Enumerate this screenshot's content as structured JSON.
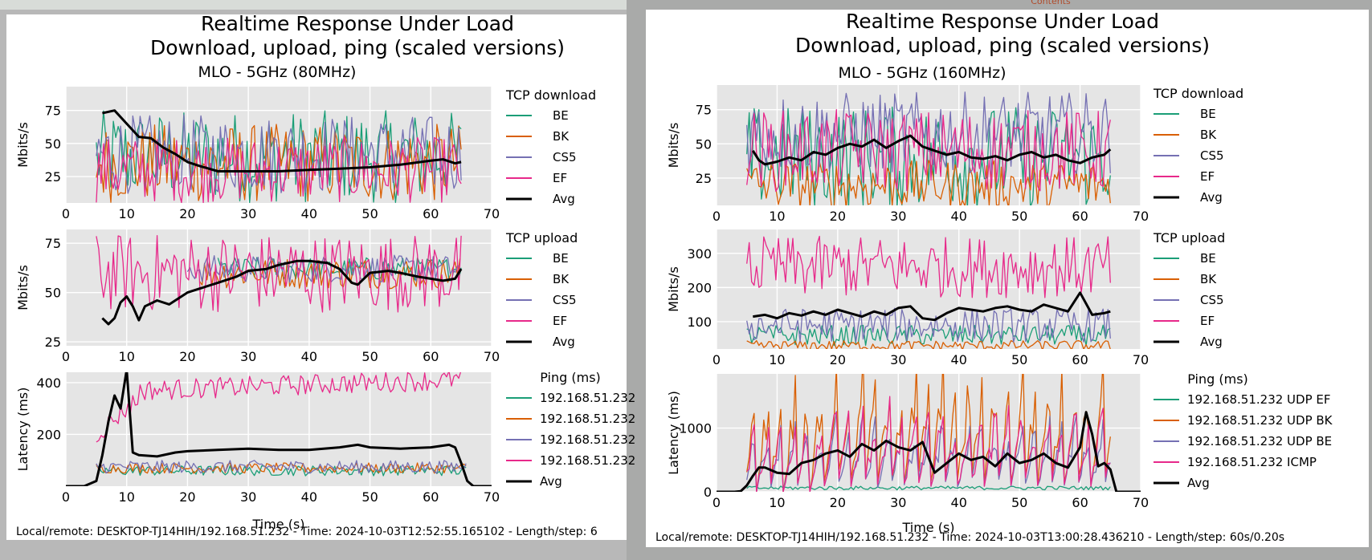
{
  "page": {
    "top_link": "Contents"
  },
  "chart_data": [
    {
      "type": "line",
      "title_line1": "Realtime Response Under Load",
      "title_line2": "Download, upload, ping (scaled versions)",
      "subtitle": "MLO - 5GHz (80MHz)",
      "footer": "Local/remote: DESKTOP-TJ14HIH/192.168.51.232 - Time: 2024-10-03T12:52:55.165102 - Length/step: 6",
      "subplots": [
        {
          "id": "download",
          "ylabel": "Mbits/s",
          "xlim": [
            0,
            70
          ],
          "ylim": [
            5,
            93
          ],
          "xticks": [
            0,
            10,
            20,
            30,
            40,
            50,
            60,
            70
          ],
          "yticks": [
            25,
            50,
            75
          ],
          "legend_title": "TCP download",
          "series": [
            {
              "name": "BE",
              "color": "#1b9e77",
              "style": "noisy",
              "center": 40,
              "amp": 35,
              "start": 5,
              "end": 65
            },
            {
              "name": "BK",
              "color": "#d95f02",
              "style": "noisy",
              "center": 35,
              "amp": 30,
              "start": 5,
              "end": 65
            },
            {
              "name": "CS5",
              "color": "#7570b3",
              "style": "noisy",
              "center": 42,
              "amp": 30,
              "start": 5,
              "end": 65
            },
            {
              "name": "EF",
              "color": "#e7298a",
              "style": "noisy",
              "center": 30,
              "amp": 25,
              "start": 5,
              "end": 65
            },
            {
              "name": "Avg",
              "color": "#000000",
              "style": "avg",
              "x": [
                6,
                8,
                10,
                12,
                14,
                16,
                18,
                20,
                22,
                25,
                30,
                35,
                40,
                45,
                50,
                55,
                60,
                62,
                64,
                65
              ],
              "y": [
                73,
                75,
                65,
                55,
                54,
                47,
                42,
                36,
                33,
                29,
                29,
                29,
                30,
                31,
                32,
                34,
                37,
                38,
                35,
                36
              ]
            }
          ]
        },
        {
          "id": "upload",
          "ylabel": "Mbits/s",
          "xlim": [
            0,
            70
          ],
          "ylim": [
            23,
            82
          ],
          "xticks": [
            0,
            10,
            20,
            30,
            40,
            50,
            60,
            70
          ],
          "yticks": [
            25,
            50,
            75
          ],
          "legend_title": "TCP upload",
          "series": [
            {
              "name": "BE",
              "color": "#1b9e77",
              "style": "noisy",
              "center": 62,
              "amp": 6,
              "start": 25,
              "end": 65
            },
            {
              "name": "BK",
              "color": "#d95f02",
              "style": "noisy",
              "center": 60,
              "amp": 8,
              "start": 22,
              "end": 65
            },
            {
              "name": "CS5",
              "color": "#7570b3",
              "style": "noisy",
              "center": 62,
              "amp": 7,
              "start": 20,
              "end": 65
            },
            {
              "name": "EF",
              "color": "#e7298a",
              "style": "noisy",
              "center": 60,
              "amp": 20,
              "start": 5,
              "end": 65
            },
            {
              "name": "Avg",
              "color": "#000000",
              "style": "avg",
              "x": [
                6,
                7,
                8,
                9,
                10,
                11,
                12,
                13,
                15,
                17,
                20,
                22,
                25,
                28,
                30,
                33,
                35,
                38,
                40,
                43,
                45,
                47,
                48,
                50,
                53,
                55,
                58,
                60,
                62,
                64,
                65
              ],
              "y": [
                37,
                34,
                37,
                45,
                48,
                43,
                36,
                43,
                46,
                44,
                50,
                52,
                55,
                58,
                61,
                62,
                64,
                66,
                66,
                65,
                62,
                55,
                54,
                60,
                61,
                60,
                58,
                57,
                56,
                57,
                62
              ]
            }
          ]
        },
        {
          "id": "ping",
          "ylabel": "Latency (ms)",
          "xlabel": "Time (s)",
          "xlim": [
            0,
            70
          ],
          "ylim": [
            0,
            440
          ],
          "xticks": [
            0,
            10,
            20,
            30,
            40,
            50,
            60,
            70
          ],
          "yticks": [
            200,
            400
          ],
          "legend_title": "Ping (ms)",
          "series": [
            {
              "name": "192.168.51.232",
              "color": "#1b9e77",
              "style": "noisy",
              "center": 60,
              "amp": 20,
              "start": 5,
              "end": 66
            },
            {
              "name": "192.168.51.232",
              "color": "#d95f02",
              "style": "noisy",
              "center": 70,
              "amp": 20,
              "start": 5,
              "end": 66
            },
            {
              "name": "192.168.51.232",
              "color": "#7570b3",
              "style": "noisy",
              "center": 75,
              "amp": 25,
              "start": 5,
              "end": 66
            },
            {
              "name": "192.168.51.232",
              "color": "#e7298a",
              "style": "rise",
              "center": 370,
              "amp": 40,
              "start": 5,
              "end": 65
            },
            {
              "name": "Avg",
              "color": "#000000",
              "style": "avg",
              "x": [
                0,
                3,
                5,
                6,
                7,
                8,
                9,
                10,
                11,
                12,
                15,
                18,
                20,
                25,
                30,
                35,
                40,
                45,
                48,
                50,
                55,
                60,
                63,
                64,
                65,
                66,
                67,
                70
              ],
              "y": [
                0,
                0,
                20,
                120,
                250,
                350,
                300,
                450,
                130,
                120,
                115,
                130,
                135,
                140,
                145,
                140,
                140,
                150,
                160,
                150,
                145,
                150,
                160,
                150,
                90,
                20,
                0,
                0
              ]
            }
          ]
        }
      ]
    },
    {
      "type": "line",
      "title_line1": "Realtime Response Under Load",
      "title_line2": "Download, upload, ping (scaled versions)",
      "subtitle": "MLO - 5GHz (160MHz)",
      "footer": "Local/remote: DESKTOP-TJ14HIH/192.168.51.232 - Time: 2024-10-03T13:00:28.436210 - Length/step: 60s/0.20s",
      "subplots": [
        {
          "id": "download",
          "ylabel": "Mbits/s",
          "xlim": [
            0,
            70
          ],
          "ylim": [
            5,
            93
          ],
          "xticks": [
            0,
            10,
            20,
            30,
            40,
            50,
            60,
            70
          ],
          "yticks": [
            25,
            50,
            75
          ],
          "legend_title": "TCP download",
          "series": [
            {
              "name": "BE",
              "color": "#1b9e77",
              "style": "noisy",
              "center": 40,
              "amp": 38,
              "start": 5,
              "end": 65
            },
            {
              "name": "BK",
              "color": "#d95f02",
              "style": "noisy",
              "center": 20,
              "amp": 18,
              "start": 5,
              "end": 65
            },
            {
              "name": "CS5",
              "color": "#7570b3",
              "style": "noisy",
              "center": 58,
              "amp": 30,
              "start": 5,
              "end": 65
            },
            {
              "name": "EF",
              "color": "#e7298a",
              "style": "noisy",
              "center": 45,
              "amp": 30,
              "start": 5,
              "end": 65
            },
            {
              "name": "Avg",
              "color": "#000000",
              "style": "avg",
              "x": [
                6,
                7,
                8,
                10,
                12,
                14,
                16,
                18,
                20,
                22,
                24,
                26,
                28,
                30,
                32,
                34,
                36,
                38,
                40,
                42,
                44,
                46,
                48,
                50,
                52,
                54,
                56,
                58,
                60,
                62,
                64,
                65
              ],
              "y": [
                45,
                38,
                35,
                37,
                40,
                38,
                44,
                42,
                47,
                50,
                48,
                53,
                47,
                52,
                56,
                48,
                45,
                42,
                44,
                40,
                39,
                41,
                38,
                42,
                44,
                40,
                42,
                38,
                36,
                40,
                42,
                46
              ]
            }
          ]
        },
        {
          "id": "upload",
          "ylabel": "Mbits/s",
          "xlim": [
            0,
            70
          ],
          "ylim": [
            20,
            370
          ],
          "xticks": [
            0,
            10,
            20,
            30,
            40,
            50,
            60,
            70
          ],
          "yticks": [
            100,
            200,
            300
          ],
          "legend_title": "TCP upload",
          "series": [
            {
              "name": "BE",
              "color": "#1b9e77",
              "style": "noisy",
              "center": 60,
              "amp": 30,
              "start": 5,
              "end": 65
            },
            {
              "name": "BK",
              "color": "#d95f02",
              "style": "noisy",
              "center": 30,
              "amp": 15,
              "start": 5,
              "end": 65
            },
            {
              "name": "CS5",
              "color": "#7570b3",
              "style": "noisy",
              "center": 90,
              "amp": 50,
              "start": 5,
              "end": 65
            },
            {
              "name": "EF",
              "color": "#e7298a",
              "style": "noisy",
              "center": 260,
              "amp": 90,
              "start": 5,
              "end": 65
            },
            {
              "name": "Avg",
              "color": "#000000",
              "style": "avg",
              "x": [
                6,
                8,
                10,
                12,
                14,
                16,
                18,
                20,
                22,
                24,
                26,
                28,
                30,
                32,
                34,
                36,
                38,
                40,
                42,
                44,
                46,
                48,
                50,
                52,
                54,
                56,
                58,
                60,
                62,
                64,
                65
              ],
              "y": [
                115,
                120,
                110,
                125,
                118,
                130,
                120,
                135,
                125,
                115,
                130,
                120,
                140,
                145,
                110,
                105,
                125,
                140,
                135,
                130,
                140,
                145,
                135,
                130,
                150,
                140,
                130,
                185,
                120,
                125,
                130
              ]
            }
          ]
        },
        {
          "id": "ping",
          "ylabel": "Latency (ms)",
          "xlabel": "Time (s)",
          "xlim": [
            0,
            70
          ],
          "ylim": [
            0,
            1850
          ],
          "xticks": [
            0,
            10,
            20,
            30,
            40,
            50,
            60,
            70
          ],
          "yticks": [
            0,
            1000
          ],
          "legend_title": "Ping (ms)",
          "series": [
            {
              "name": "192.168.51.232 UDP EF",
              "color": "#1b9e77",
              "style": "noisy",
              "center": 60,
              "amp": 30,
              "start": 5,
              "end": 65
            },
            {
              "name": "192.168.51.232 UDP BK",
              "color": "#d95f02",
              "style": "saw",
              "center": 900,
              "amp": 1000,
              "start": 5,
              "end": 65
            },
            {
              "name": "192.168.51.232 UDP BE",
              "color": "#7570b3",
              "style": "saw",
              "center": 600,
              "amp": 600,
              "start": 5,
              "end": 65
            },
            {
              "name": "192.168.51.232 ICMP",
              "color": "#e7298a",
              "style": "saw",
              "center": 700,
              "amp": 700,
              "start": 5,
              "end": 65
            },
            {
              "name": "Avg",
              "color": "#000000",
              "style": "avg",
              "x": [
                0,
                3,
                4,
                5,
                6,
                7,
                8,
                10,
                12,
                14,
                16,
                18,
                20,
                22,
                24,
                26,
                28,
                30,
                32,
                34,
                36,
                38,
                40,
                42,
                44,
                46,
                48,
                50,
                52,
                54,
                56,
                58,
                60,
                61,
                62,
                63,
                64,
                65,
                66,
                70
              ],
              "y": [
                0,
                0,
                10,
                100,
                250,
                380,
                380,
                300,
                280,
                450,
                500,
                600,
                650,
                550,
                750,
                650,
                800,
                700,
                650,
                780,
                300,
                450,
                600,
                500,
                550,
                400,
                600,
                450,
                500,
                600,
                450,
                380,
                700,
                1250,
                900,
                400,
                450,
                350,
                0,
                0
              ]
            }
          ]
        }
      ]
    }
  ]
}
